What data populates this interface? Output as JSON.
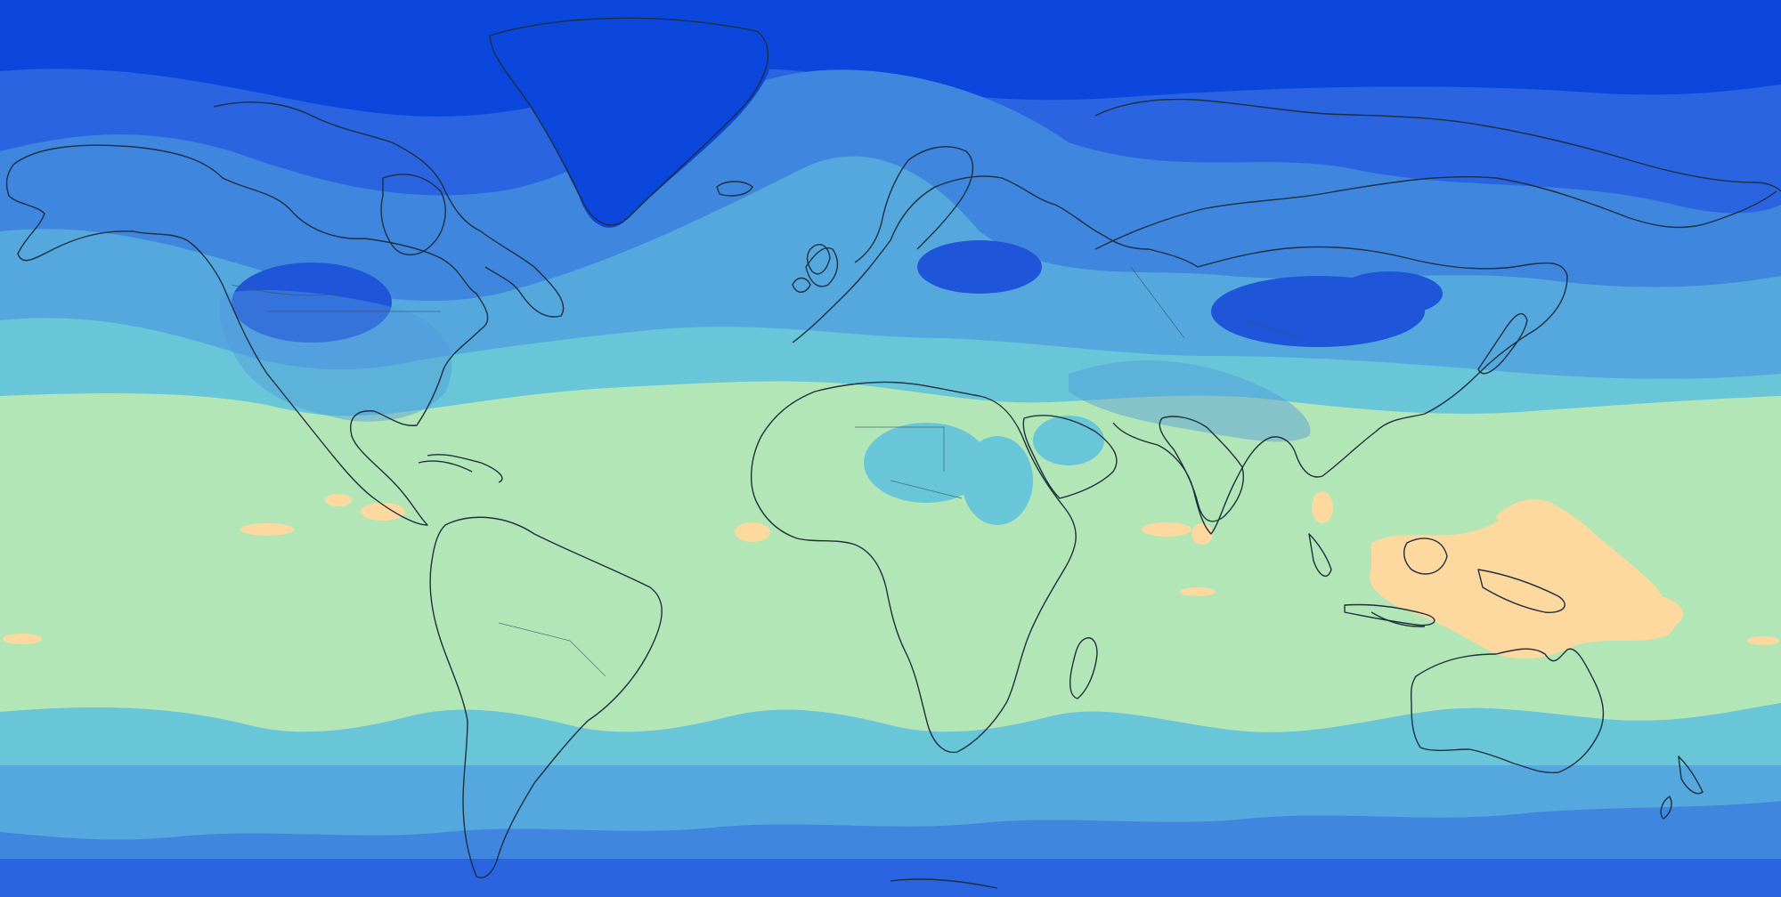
{
  "map": {
    "kind": "global equirectangular field map",
    "legend": "none",
    "labels": "none",
    "palette": {
      "level_1_polar": "#0b47dc",
      "level_2": "#2a64e0",
      "level_3": "#3f86de",
      "level_4": "#55a8de",
      "level_5": "#69c6d8",
      "level_6_tropical": "#b3e6b6",
      "level_7_warm_pool": "#fdd9a0",
      "coastline": "#1d2f3f"
    }
  }
}
